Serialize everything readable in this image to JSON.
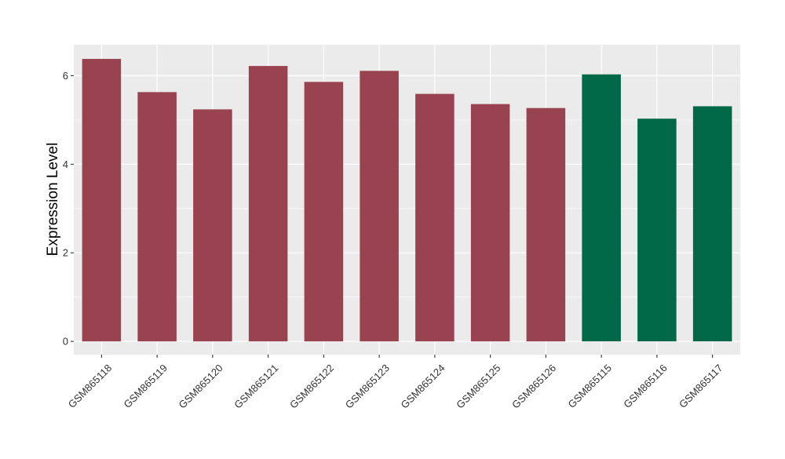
{
  "chart_data": {
    "type": "bar",
    "title": "",
    "xlabel": "",
    "ylabel": "Expression Level",
    "categories": [
      "GSM865118",
      "GSM865119",
      "GSM865120",
      "GSM865121",
      "GSM865122",
      "GSM865123",
      "GSM865124",
      "GSM865125",
      "GSM865126",
      "GSM865115",
      "GSM865116",
      "GSM865117"
    ],
    "values": [
      6.38,
      5.63,
      5.24,
      6.22,
      5.86,
      6.11,
      5.59,
      5.36,
      5.27,
      6.03,
      5.03,
      5.31
    ],
    "bar_colors": [
      "#9A4350",
      "#9A4350",
      "#9A4350",
      "#9A4350",
      "#9A4350",
      "#9A4350",
      "#9A4350",
      "#9A4350",
      "#9A4350",
      "#006846",
      "#006846",
      "#006846"
    ],
    "y_ticks": [
      0,
      2,
      4,
      6
    ],
    "ylim": [
      -0.3,
      6.7
    ],
    "grid": true,
    "panel_background": "#EBEBEB",
    "grid_color": "#FFFFFF"
  }
}
